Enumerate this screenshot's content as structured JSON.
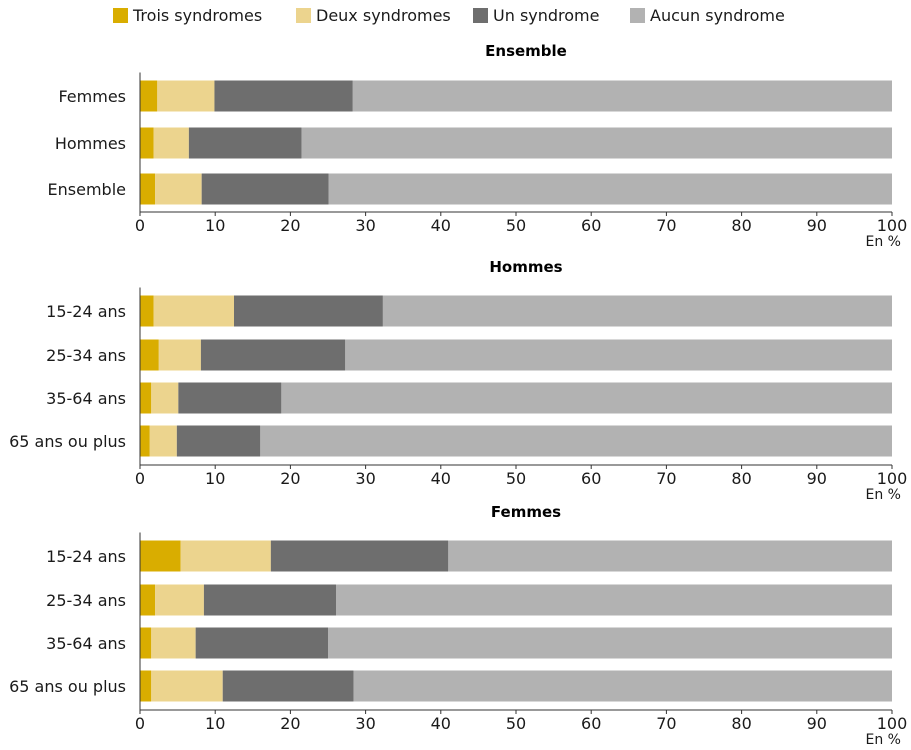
{
  "colors": {
    "Trois syndromes": "#d9ad00",
    "Deux syndromes": "#ecd48e",
    "Un syndrome": "#6e6e6e",
    "Aucun syndrome": "#b2b2b2",
    "axis": "#333333"
  },
  "legend": [
    "Trois syndromes",
    "Deux syndromes",
    "Un syndrome",
    "Aucun syndrome"
  ],
  "chart_data": [
    {
      "type": "bar",
      "orientation": "horizontal",
      "stacked": true,
      "title": "Ensemble",
      "unit": "En %",
      "xlim": [
        0,
        100
      ],
      "xticks": [
        0,
        10,
        20,
        30,
        40,
        50,
        60,
        70,
        80,
        90,
        100
      ],
      "categories": [
        "Femmes",
        "Hommes",
        "Ensemble"
      ],
      "series": [
        {
          "name": "Trois syndromes",
          "values": [
            2.3,
            1.8,
            2.0
          ]
        },
        {
          "name": "Deux syndromes",
          "values": [
            7.6,
            4.7,
            6.2
          ]
        },
        {
          "name": "Un syndrome",
          "values": [
            18.4,
            15.0,
            16.9
          ]
        },
        {
          "name": "Aucun syndrome",
          "values": [
            71.7,
            78.5,
            74.9
          ]
        }
      ]
    },
    {
      "type": "bar",
      "orientation": "horizontal",
      "stacked": true,
      "title": "Hommes",
      "unit": "En %",
      "xlim": [
        0,
        100
      ],
      "xticks": [
        0,
        10,
        20,
        30,
        40,
        50,
        60,
        70,
        80,
        90,
        100
      ],
      "categories": [
        "15-24 ans",
        "25-34 ans",
        "35-64 ans",
        "65 ans ou plus"
      ],
      "series": [
        {
          "name": "Trois syndromes",
          "values": [
            1.8,
            2.5,
            1.5,
            1.3
          ]
        },
        {
          "name": "Deux syndromes",
          "values": [
            10.7,
            5.6,
            3.6,
            3.6
          ]
        },
        {
          "name": "Un syndrome",
          "values": [
            19.8,
            19.2,
            13.7,
            11.1
          ]
        },
        {
          "name": "Aucun syndrome",
          "values": [
            67.7,
            72.7,
            81.2,
            84.0
          ]
        }
      ]
    },
    {
      "type": "bar",
      "orientation": "horizontal",
      "stacked": true,
      "title": "Femmes",
      "unit": "En %",
      "xlim": [
        0,
        100
      ],
      "xticks": [
        0,
        10,
        20,
        30,
        40,
        50,
        60,
        70,
        80,
        90,
        100
      ],
      "categories": [
        "15-24 ans",
        "25-34 ans",
        "35-64 ans",
        "65 ans ou plus"
      ],
      "series": [
        {
          "name": "Trois syndromes",
          "values": [
            5.4,
            2.0,
            1.5,
            1.5
          ]
        },
        {
          "name": "Deux syndromes",
          "values": [
            12.0,
            6.5,
            5.9,
            9.5
          ]
        },
        {
          "name": "Un syndrome",
          "values": [
            23.6,
            17.6,
            17.6,
            17.4
          ]
        },
        {
          "name": "Aucun syndrome",
          "values": [
            59.0,
            73.9,
            75.0,
            71.6
          ]
        }
      ]
    }
  ]
}
